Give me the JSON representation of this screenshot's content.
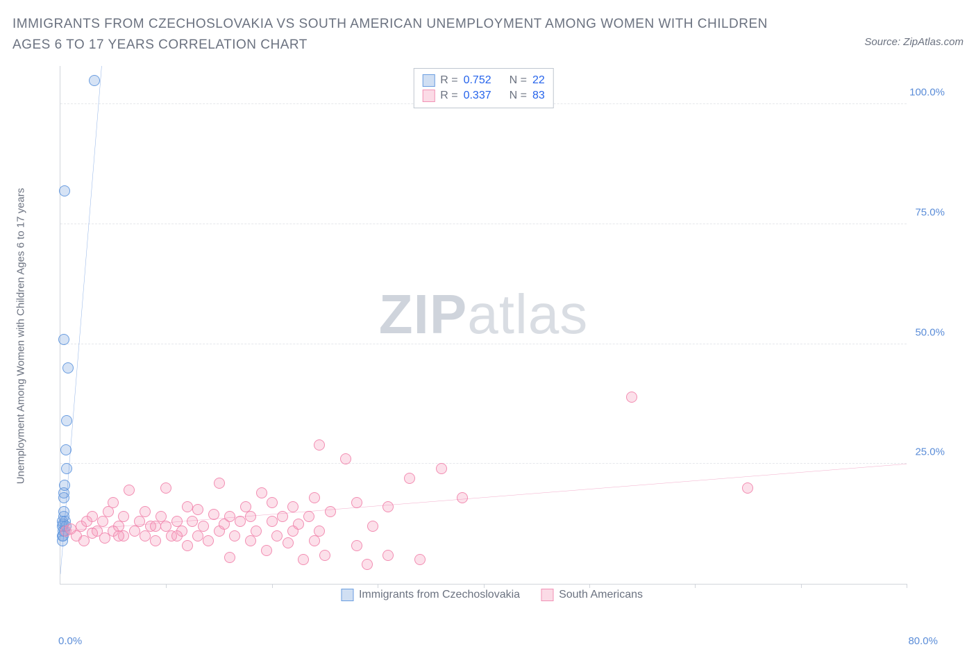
{
  "title": "IMMIGRANTS FROM CZECHOSLOVAKIA VS SOUTH AMERICAN UNEMPLOYMENT AMONG WOMEN WITH CHILDREN AGES 6 TO 17 YEARS CORRELATION CHART",
  "source_label": "Source: ",
  "source_name": "ZipAtlas.com",
  "watermark_a": "ZIP",
  "watermark_b": "atlas",
  "y_axis_title": "Unemployment Among Women with Children Ages 6 to 17 years",
  "legend_top": {
    "rows": [
      {
        "swatch": "blue",
        "r_label": "R =",
        "r": "0.752",
        "n_label": "N =",
        "n": "22"
      },
      {
        "swatch": "pink",
        "r_label": "R =",
        "r": "0.337",
        "n_label": "N =",
        "n": "83"
      }
    ]
  },
  "legend_bottom": {
    "items": [
      {
        "swatch": "blue",
        "label": "Immigrants from Czechoslovakia"
      },
      {
        "swatch": "pink",
        "label": "South Americans"
      }
    ]
  },
  "chart": {
    "type": "scatter",
    "xlim": [
      0,
      80
    ],
    "ylim": [
      0,
      108
    ],
    "xtick_label_min": "0.0%",
    "xtick_label_max": "80.0%",
    "yticks": [
      25,
      50,
      75,
      100
    ],
    "ytick_labels": [
      "25.0%",
      "50.0%",
      "75.0%",
      "100.0%"
    ],
    "xticks_minor": [
      10,
      20,
      30,
      40,
      50,
      60,
      70,
      80
    ],
    "background_color": "#ffffff",
    "grid_color": "#e5e7eb",
    "series": [
      {
        "name": "Immigrants from Czechoslovakia",
        "color_fill": "rgba(119,162,222,0.30)",
        "color_stroke": "#6a9de0",
        "marker_radius": 8,
        "trend_color": "#2e6dd1",
        "trend_from": [
          0,
          2
        ],
        "trend_to": [
          3.9,
          108
        ],
        "trend_width": 2.3,
        "points": [
          [
            0.2,
            10
          ],
          [
            0.2,
            12
          ],
          [
            0.2,
            13
          ],
          [
            0.3,
            18
          ],
          [
            0.3,
            19
          ],
          [
            0.4,
            20.5
          ],
          [
            0.5,
            28
          ],
          [
            0.6,
            34
          ],
          [
            0.7,
            45
          ],
          [
            0.3,
            51
          ],
          [
            0.4,
            82
          ],
          [
            3.2,
            105
          ],
          [
            0.25,
            11
          ],
          [
            0.25,
            12.5
          ],
          [
            0.3,
            14
          ],
          [
            0.35,
            15
          ],
          [
            0.4,
            11
          ],
          [
            0.45,
            13
          ],
          [
            0.5,
            12
          ],
          [
            0.6,
            24
          ],
          [
            0.2,
            9
          ],
          [
            0.25,
            10
          ]
        ]
      },
      {
        "name": "South Americans",
        "color_fill": "rgba(244,151,184,0.30)",
        "color_stroke": "#f28db2",
        "marker_radius": 8,
        "trend_color": "#e8639a",
        "trend_from": [
          0,
          11
        ],
        "trend_to": [
          80,
          25
        ],
        "trend_width": 2.3,
        "points": [
          [
            0.5,
            11
          ],
          [
            1,
            11.5
          ],
          [
            1.5,
            10
          ],
          [
            2,
            12
          ],
          [
            2.2,
            9
          ],
          [
            2.5,
            13
          ],
          [
            3,
            10.5
          ],
          [
            3,
            14
          ],
          [
            3.5,
            11
          ],
          [
            4,
            13
          ],
          [
            4.2,
            9.5
          ],
          [
            4.5,
            15
          ],
          [
            5,
            11
          ],
          [
            5,
            17
          ],
          [
            5.5,
            12
          ],
          [
            6,
            10
          ],
          [
            6,
            14
          ],
          [
            6.5,
            19.5
          ],
          [
            7,
            11
          ],
          [
            7.5,
            13
          ],
          [
            8,
            10
          ],
          [
            8,
            15
          ],
          [
            8.5,
            12
          ],
          [
            9,
            9
          ],
          [
            9.5,
            14
          ],
          [
            10,
            12
          ],
          [
            10,
            20
          ],
          [
            10.5,
            10
          ],
          [
            11,
            13
          ],
          [
            11.5,
            11
          ],
          [
            12,
            16
          ],
          [
            12,
            8
          ],
          [
            12.5,
            13
          ],
          [
            13,
            10
          ],
          [
            13,
            15.5
          ],
          [
            13.5,
            12
          ],
          [
            14,
            9
          ],
          [
            14.5,
            14.5
          ],
          [
            15,
            11
          ],
          [
            15,
            21
          ],
          [
            15.5,
            12.5
          ],
          [
            16,
            5.5
          ],
          [
            16,
            14
          ],
          [
            16.5,
            10
          ],
          [
            17,
            13
          ],
          [
            17.5,
            16
          ],
          [
            18,
            9
          ],
          [
            18,
            14
          ],
          [
            18.5,
            11
          ],
          [
            19,
            19
          ],
          [
            19.5,
            7
          ],
          [
            20,
            13
          ],
          [
            20,
            17
          ],
          [
            20.5,
            10
          ],
          [
            21,
            14
          ],
          [
            21.5,
            8.5
          ],
          [
            22,
            16
          ],
          [
            22,
            11
          ],
          [
            22.5,
            12.5
          ],
          [
            23,
            5
          ],
          [
            23.5,
            14
          ],
          [
            24,
            9
          ],
          [
            24,
            18
          ],
          [
            24.5,
            11
          ],
          [
            24.5,
            29
          ],
          [
            25,
            6
          ],
          [
            25.5,
            15
          ],
          [
            27,
            26
          ],
          [
            28,
            8
          ],
          [
            28,
            17
          ],
          [
            29,
            4
          ],
          [
            29.5,
            12
          ],
          [
            31,
            6
          ],
          [
            31,
            16
          ],
          [
            33,
            22
          ],
          [
            34,
            5
          ],
          [
            36,
            24
          ],
          [
            38,
            18
          ],
          [
            54,
            39
          ],
          [
            65,
            20
          ],
          [
            5.5,
            10
          ],
          [
            9,
            12
          ],
          [
            11,
            10
          ]
        ]
      }
    ]
  },
  "colors": {
    "title_text": "#6b7280",
    "axis_text": "#5b8dd8"
  }
}
